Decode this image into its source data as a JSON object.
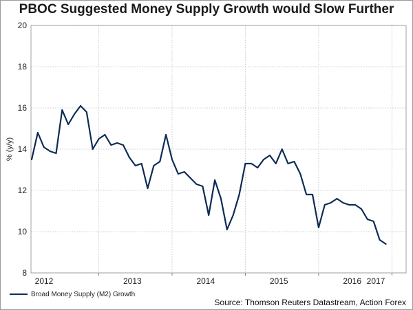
{
  "chart_data": {
    "type": "line",
    "title": "PBOC Suggested Money Supply Growth would Slow Further",
    "ylabel": "% (y/y)",
    "xlabel": "",
    "ylim": [
      8,
      20
    ],
    "yticks": [
      8,
      10,
      12,
      14,
      16,
      18,
      20
    ],
    "year_labels": [
      "2012",
      "2013",
      "2014",
      "2015",
      "2016",
      "2017"
    ],
    "x_start": "2012-02",
    "series": [
      {
        "name": "Broad Money Supply (M2) Growth",
        "color": "#0d2b55",
        "values": [
          13.5,
          14.8,
          14.1,
          13.9,
          13.8,
          15.9,
          15.2,
          15.7,
          16.1,
          15.8,
          14.0,
          14.5,
          14.7,
          14.2,
          14.3,
          14.2,
          13.6,
          13.2,
          13.3,
          12.1,
          13.2,
          13.4,
          14.7,
          13.5,
          12.8,
          12.9,
          12.6,
          12.3,
          12.2,
          10.8,
          12.5,
          11.6,
          10.1,
          10.8,
          11.8,
          13.3,
          13.3,
          13.1,
          13.5,
          13.7,
          13.3,
          14.0,
          13.3,
          13.4,
          12.8,
          11.8,
          11.8,
          10.2,
          11.3,
          11.4,
          11.6,
          11.4,
          11.3,
          11.3,
          11.1,
          10.6,
          10.5,
          9.6,
          9.4
        ]
      }
    ]
  },
  "legend": {
    "label": "Broad Money Supply (M2) Growth"
  },
  "source": "Source: Thomson Reuters Datastream, Action Forex"
}
